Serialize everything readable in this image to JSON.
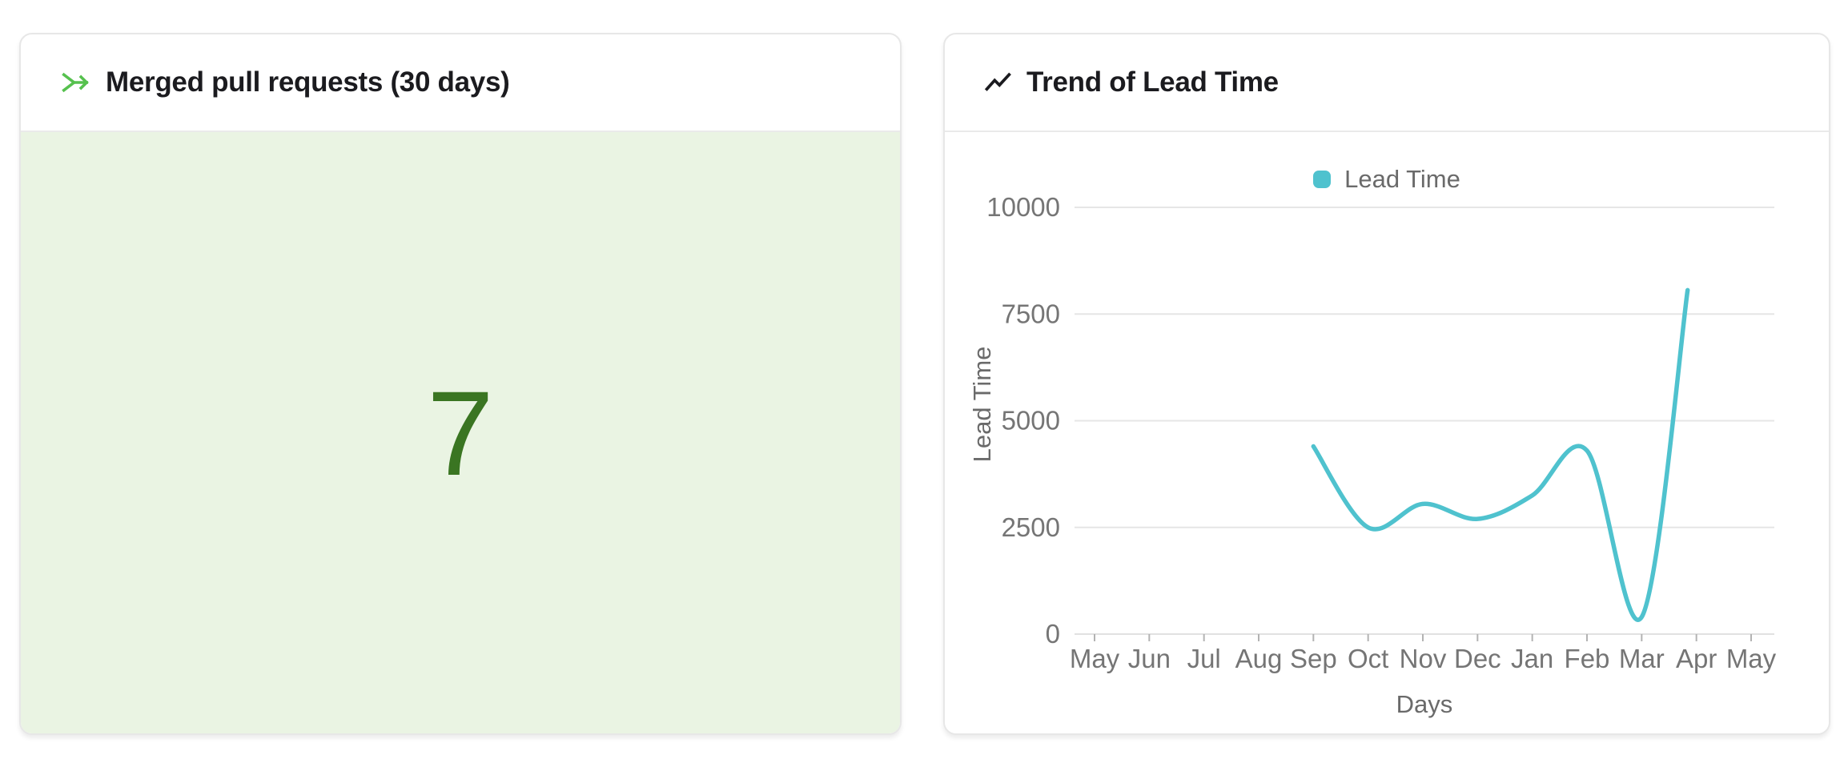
{
  "colors": {
    "accent_green": "#56c14e",
    "stat_green": "#3a7522",
    "stat_panel_bg": "#eaf4e3",
    "teal": "#4fc2ce",
    "title_text": "#1b1b1f",
    "axis_text": "#757575",
    "muted_text": "#6a6a6a",
    "gridline": "#e6e6e6",
    "card_border": "#e7e7e7"
  },
  "chart_data": [
    {
      "type": "stat",
      "title": "Merged pull requests (30 days)",
      "icon": "git-merge-icon",
      "value": 7
    },
    {
      "type": "line",
      "title": "Trend of Lead Time",
      "icon": "trend-up-icon",
      "legend": {
        "position": "top",
        "entries": [
          "Lead Time"
        ]
      },
      "xlabel": "Days",
      "ylabel": "Lead Time",
      "categories": [
        "May",
        "Jun",
        "Jul",
        "Aug",
        "Sep",
        "Oct",
        "Nov",
        "Dec",
        "Jan",
        "Feb",
        "Mar",
        "Apr",
        "May"
      ],
      "ylim": [
        0,
        10000
      ],
      "y_ticks": [
        0,
        2500,
        5000,
        7500,
        10000
      ],
      "grid": true,
      "smooth": true,
      "series": [
        {
          "name": "Lead Time",
          "color": "#4fc2ce",
          "points": [
            {
              "label": "Sep",
              "x": 4,
              "value": 4400
            },
            {
              "label": "Oct",
              "x": 5,
              "value": 2500
            },
            {
              "label": "Nov",
              "x": 6,
              "value": 3050
            },
            {
              "label": "Dec",
              "x": 7,
              "value": 2700
            },
            {
              "label": "Jan",
              "x": 8,
              "value": 3250
            },
            {
              "label": "Feb",
              "x": 9,
              "value": 4300
            },
            {
              "label": "Mar",
              "x": 10,
              "value": 400
            },
            {
              "label": "Apr",
              "x": 10.84,
              "value": 8060
            }
          ]
        }
      ]
    }
  ]
}
